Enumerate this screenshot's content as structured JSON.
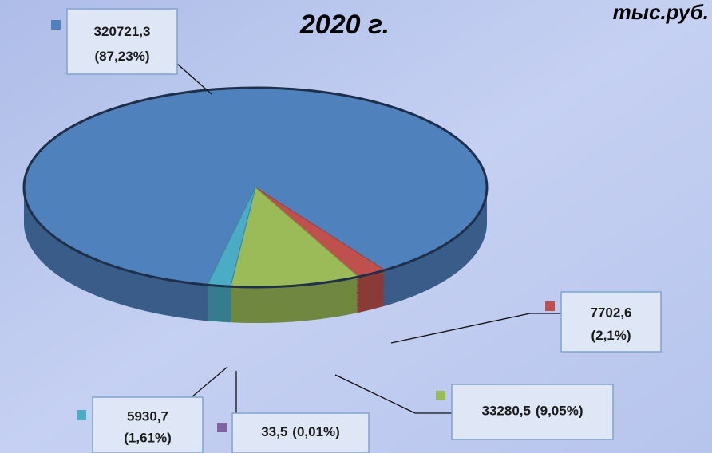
{
  "chart_data": {
    "type": "pie",
    "title": "2020 г.",
    "unit": "тыс.руб.",
    "values": [
      320721.3,
      7702.6,
      33280.5,
      33.5,
      5930.7
    ],
    "value_labels": [
      "320721,3",
      "7702,6",
      "33280,5",
      "33,5",
      "5930,7"
    ],
    "percents": [
      87.23,
      2.1,
      9.05,
      0.01,
      1.61
    ],
    "percent_labels": [
      "(87,23%)",
      "(2,1%)",
      "(9,05%)",
      "(0,01%)",
      "(1,61%)"
    ],
    "colors": [
      "#4f81bd",
      "#c0504d",
      "#9bbb59",
      "#8064a2",
      "#4bacc6"
    ]
  }
}
